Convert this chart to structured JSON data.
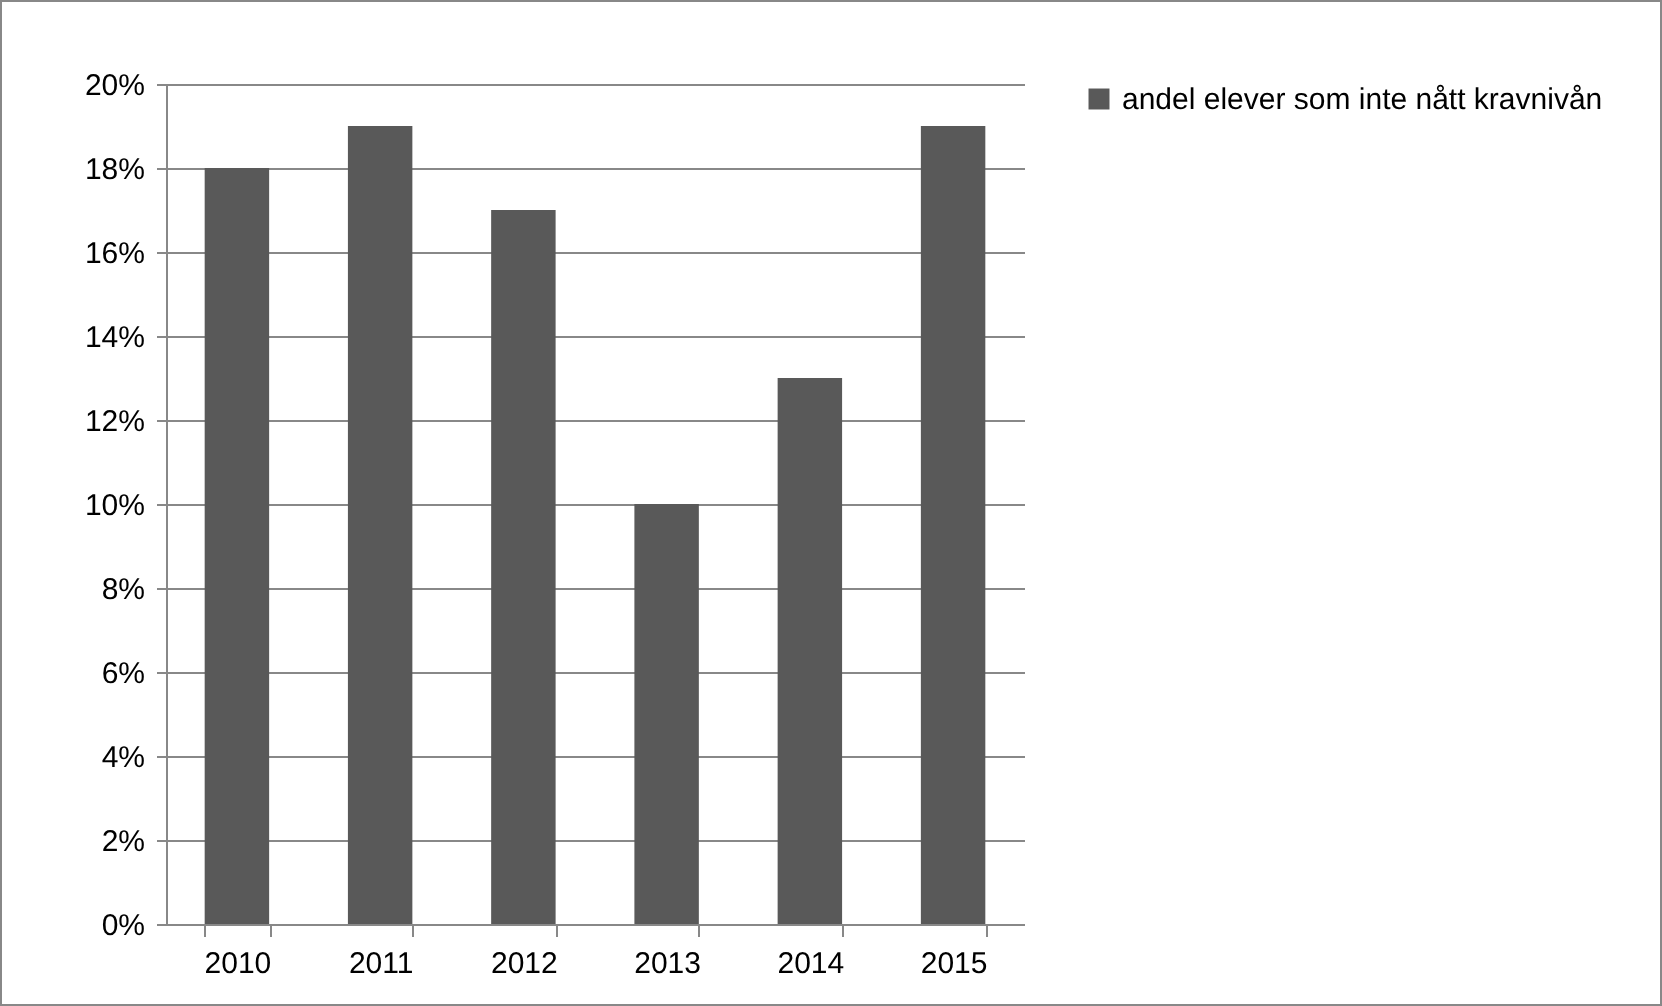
{
  "chart_data": {
    "type": "bar",
    "categories": [
      "2010",
      "2011",
      "2012",
      "2013",
      "2014",
      "2015"
    ],
    "series": [
      {
        "name": "andel elever som inte nått kravnivån",
        "color": "#595959",
        "values": [
          18,
          19,
          17,
          10,
          13,
          19
        ]
      }
    ],
    "ylim": [
      0,
      20
    ],
    "yticks": [
      {
        "value": 0,
        "label": "0%"
      },
      {
        "value": 2,
        "label": "2%"
      },
      {
        "value": 4,
        "label": "4%"
      },
      {
        "value": 6,
        "label": "6%"
      },
      {
        "value": 8,
        "label": "8%"
      },
      {
        "value": 10,
        "label": "10%"
      },
      {
        "value": 12,
        "label": "12%"
      },
      {
        "value": 14,
        "label": "14%"
      },
      {
        "value": 16,
        "label": "16%"
      },
      {
        "value": 18,
        "label": "18%"
      },
      {
        "value": 20,
        "label": "20%"
      }
    ],
    "grid": "y",
    "legend": "right"
  }
}
